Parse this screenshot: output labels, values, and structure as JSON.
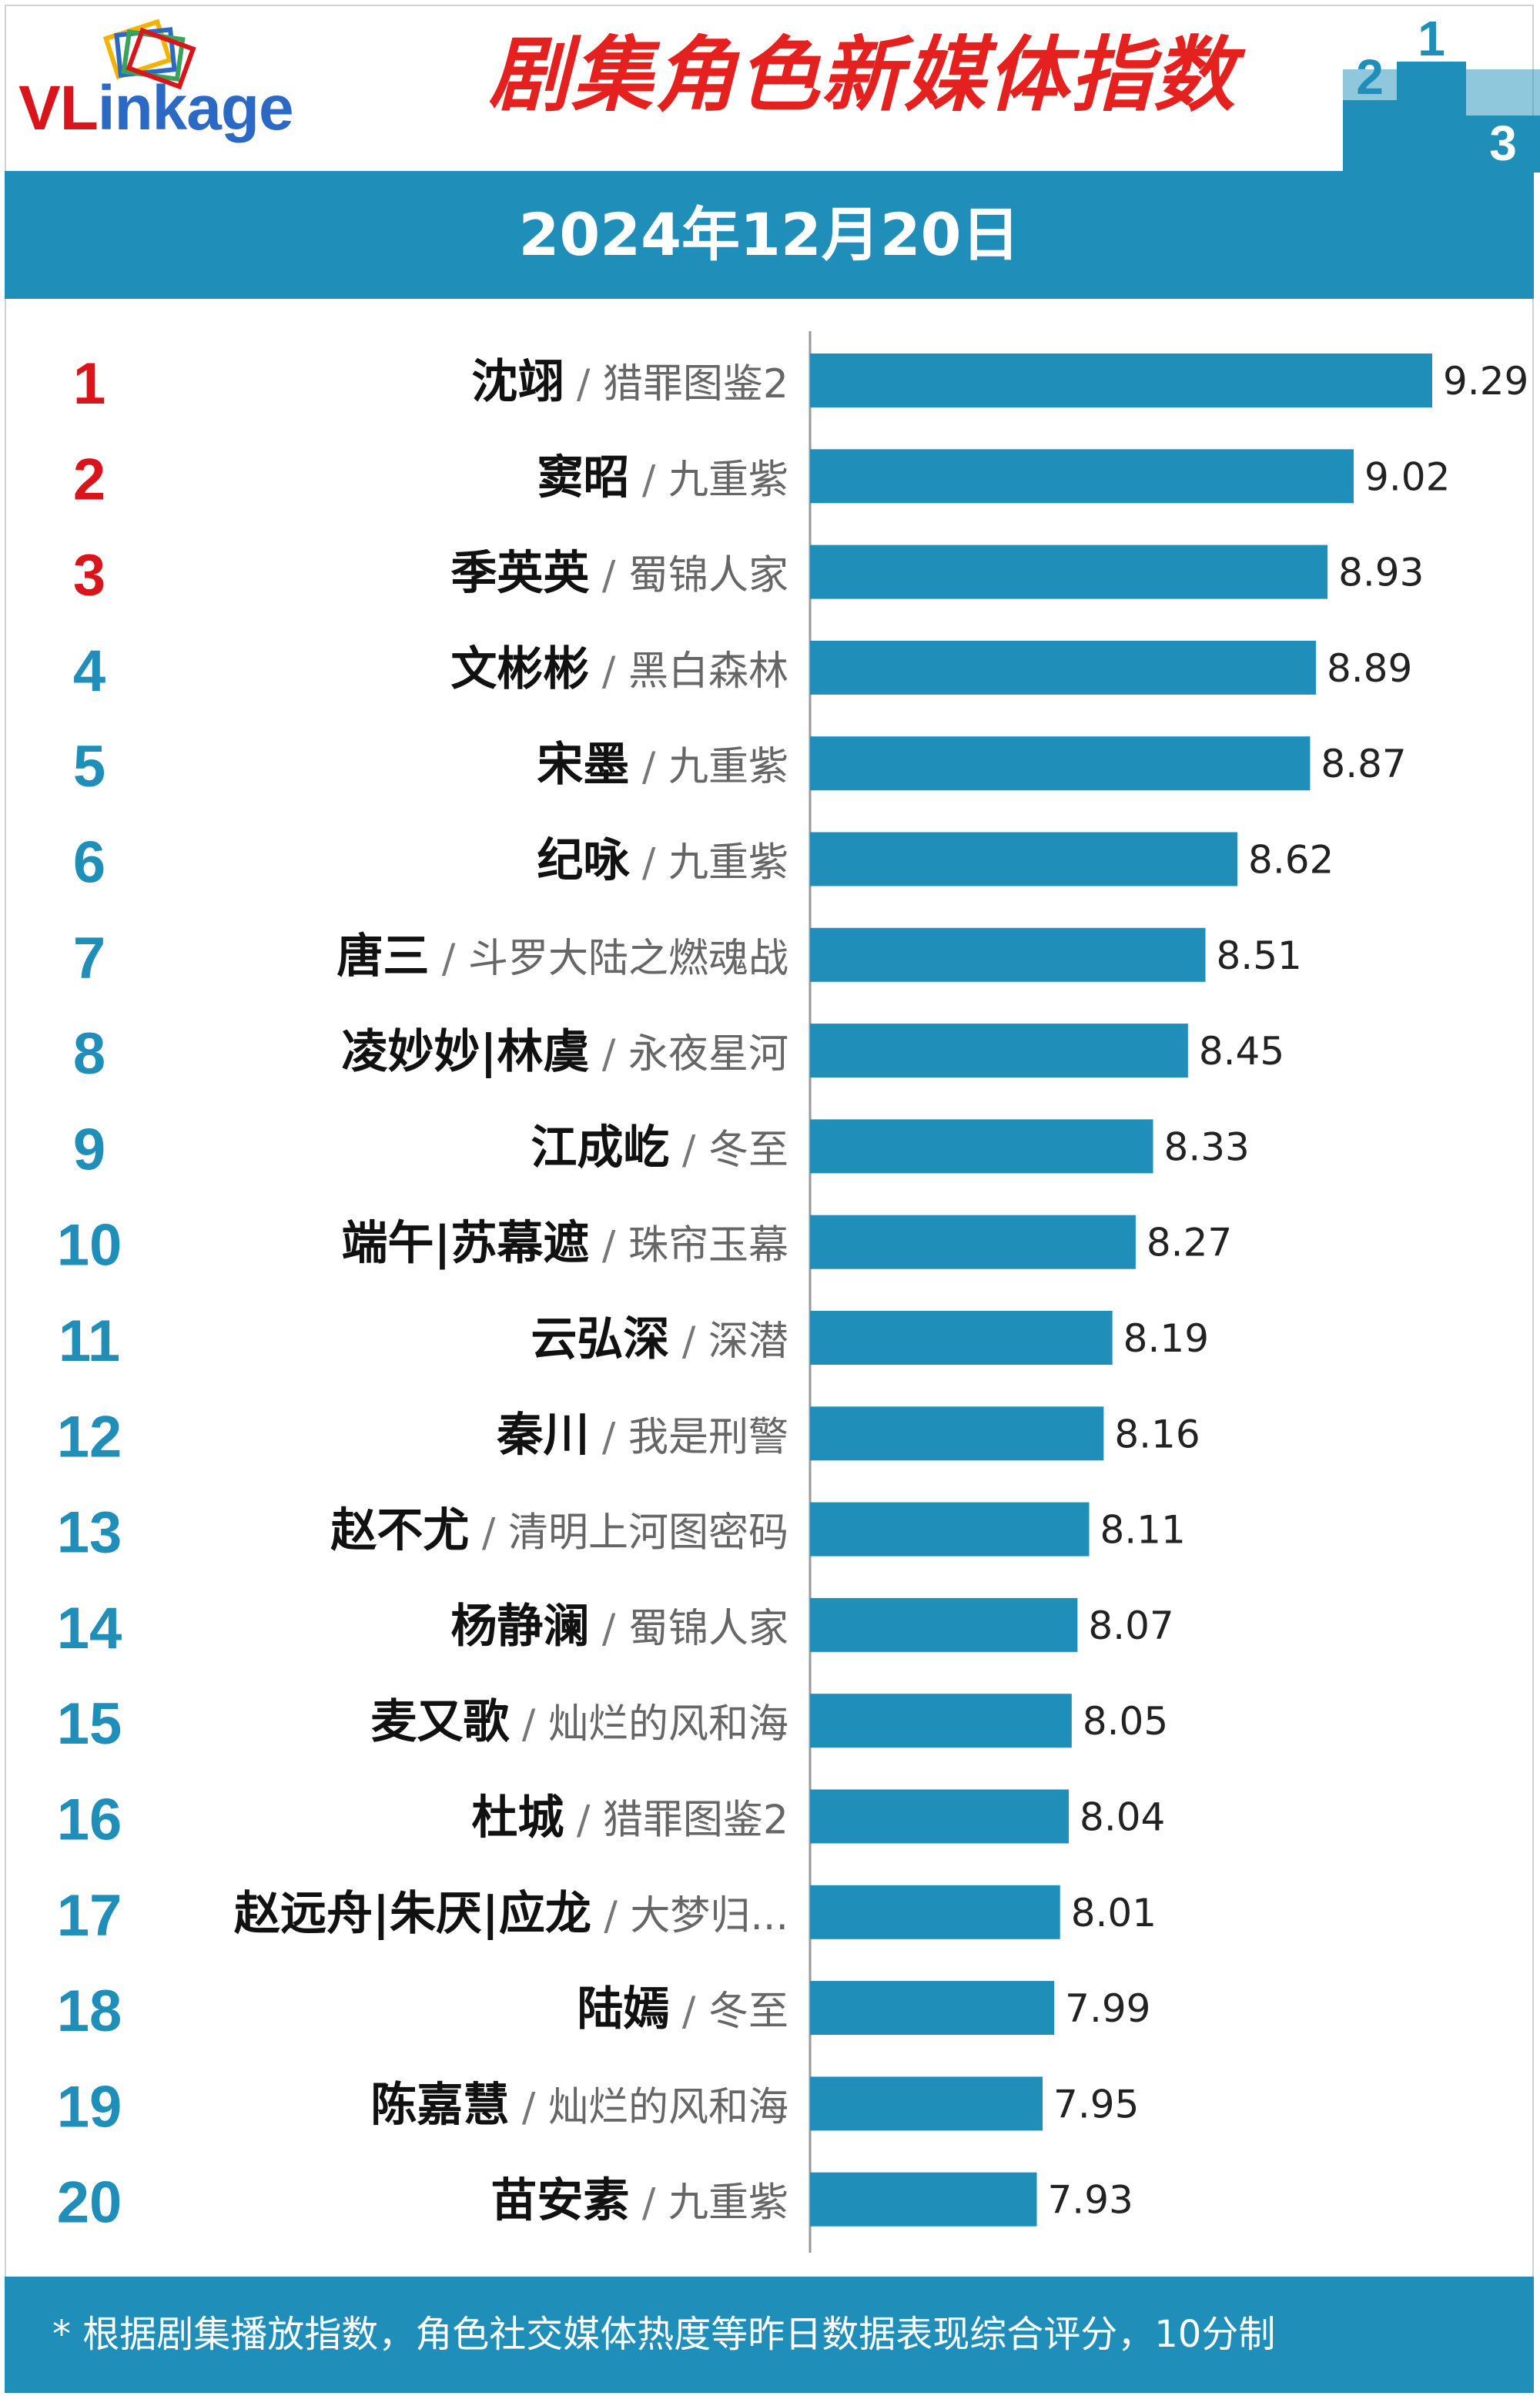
{
  "header": {
    "logo_text_accent": "VL",
    "logo_text_rest": "inkage",
    "title": "剧集角色新媒体指数",
    "podium_labels": [
      "2",
      "1",
      "3"
    ]
  },
  "date": "2024年12月20日",
  "footer": {
    "note": "* 根据剧集播放指数，角色社交媒体热度等昨日数据表现综合评分，10分制"
  },
  "colors": {
    "band": "#1f8fba",
    "bar": "#1f8fba",
    "rank_top": "#d9141b",
    "rank_other": "#1f8fba",
    "title": "#e4211f"
  },
  "chart_data": {
    "type": "bar",
    "orientation": "horizontal",
    "xlim": [
      7.15,
      9.29
    ],
    "categories": [
      {
        "rank": "1",
        "role": "沈翊",
        "show": "猎罪图鉴2"
      },
      {
        "rank": "2",
        "role": "窦昭",
        "show": "九重紫"
      },
      {
        "rank": "3",
        "role": "季英英",
        "show": "蜀锦人家"
      },
      {
        "rank": "4",
        "role": "文彬彬",
        "show": "黑白森林"
      },
      {
        "rank": "5",
        "role": "宋墨",
        "show": "九重紫"
      },
      {
        "rank": "6",
        "role": "纪咏",
        "show": "九重紫"
      },
      {
        "rank": "7",
        "role": "唐三",
        "show": "斗罗大陆之燃魂战"
      },
      {
        "rank": "8",
        "role": "凌妙妙|林虞",
        "show": "永夜星河"
      },
      {
        "rank": "9",
        "role": "江成屹",
        "show": "冬至"
      },
      {
        "rank": "10",
        "role": "端午|苏幕遮",
        "show": "珠帘玉幕"
      },
      {
        "rank": "11",
        "role": "云弘深",
        "show": "深潜"
      },
      {
        "rank": "12",
        "role": "秦川",
        "show": "我是刑警"
      },
      {
        "rank": "13",
        "role": "赵不尤",
        "show": "清明上河图密码"
      },
      {
        "rank": "14",
        "role": "杨静澜",
        "show": "蜀锦人家"
      },
      {
        "rank": "15",
        "role": "麦又歌",
        "show": "灿烂的风和海"
      },
      {
        "rank": "16",
        "role": "杜城",
        "show": "猎罪图鉴2"
      },
      {
        "rank": "17",
        "role": "赵远舟|朱厌|应龙",
        "show": "大梦归..."
      },
      {
        "rank": "18",
        "role": "陆嫣",
        "show": "冬至"
      },
      {
        "rank": "19",
        "role": "陈嘉慧",
        "show": "灿烂的风和海"
      },
      {
        "rank": "20",
        "role": "苗安素",
        "show": "九重紫"
      }
    ],
    "values": [
      9.29,
      9.02,
      8.93,
      8.89,
      8.87,
      8.62,
      8.51,
      8.45,
      8.33,
      8.27,
      8.19,
      8.16,
      8.11,
      8.07,
      8.05,
      8.04,
      8.01,
      7.99,
      7.95,
      7.93
    ],
    "values_text": [
      "9.29",
      "9.02",
      "8.93",
      "8.89",
      "8.87",
      "8.62",
      "8.51",
      "8.45",
      "8.33",
      "8.27",
      "8.19",
      "8.16",
      "8.11",
      "8.07",
      "8.05",
      "8.04",
      "8.01",
      "7.99",
      "7.95",
      "7.93"
    ],
    "separator": " / ",
    "grid": false,
    "legend": "none"
  }
}
